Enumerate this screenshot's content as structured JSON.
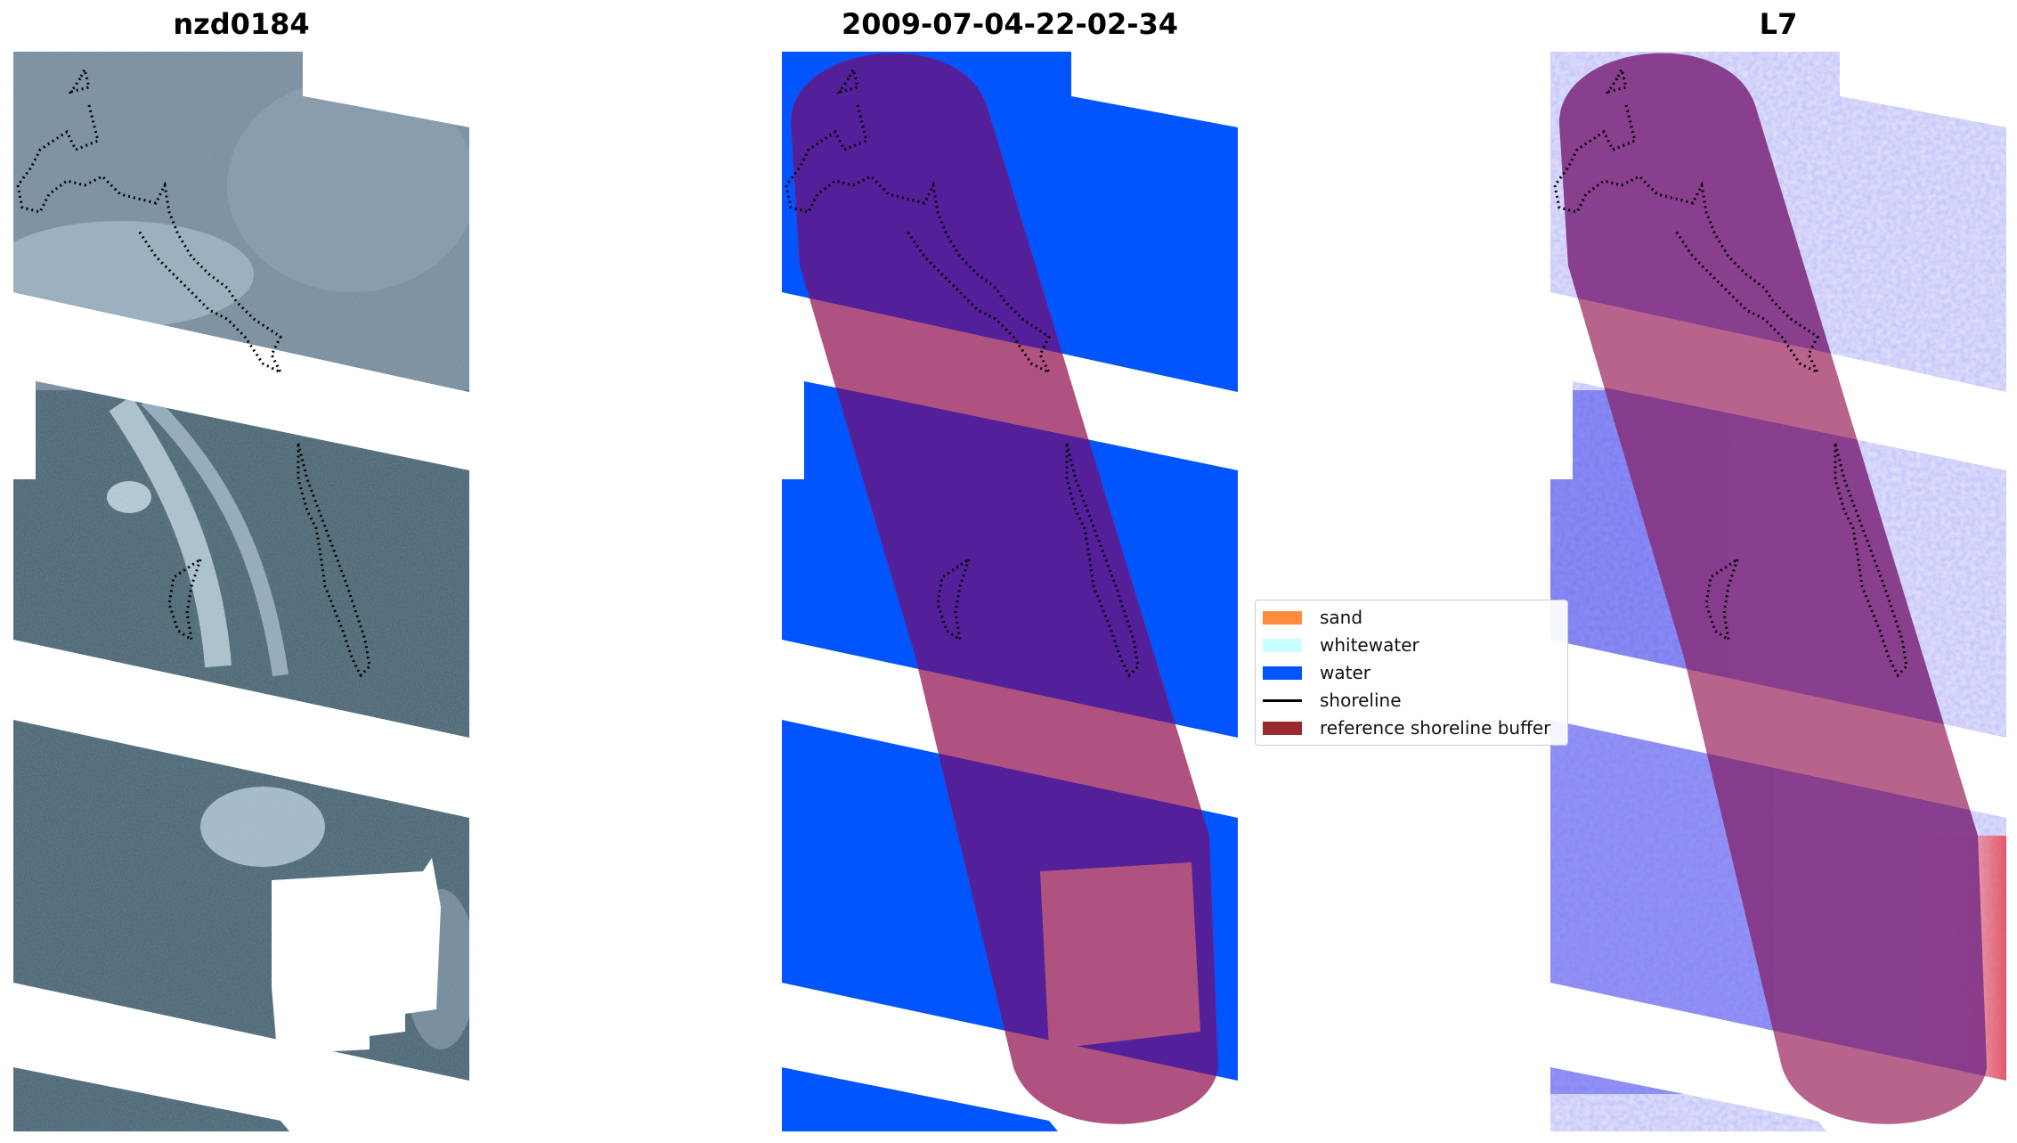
{
  "panels": [
    {
      "title": "nzd0184"
    },
    {
      "title": "2009-07-04-22-02-34"
    },
    {
      "title": "L7"
    }
  ],
  "legend": {
    "items": [
      {
        "label": "sand",
        "color": "#ff8c3c",
        "kind": "patch"
      },
      {
        "label": "whitewater",
        "color": "#c8ffff",
        "kind": "patch"
      },
      {
        "label": "water",
        "color": "#0055ff",
        "kind": "patch"
      },
      {
        "label": "shoreline",
        "color": "#000000",
        "kind": "line"
      },
      {
        "label": "reference shoreline buffer",
        "color": "#992a2e",
        "kind": "patch"
      }
    ]
  },
  "colors": {
    "water": "#0055ff",
    "buffer_overlay": "#b0527f",
    "buffer_on_water": "#53209a",
    "rgb_water": "#4a6473",
    "index_blue": "#6d6df5",
    "index_red": "#e8424f"
  }
}
